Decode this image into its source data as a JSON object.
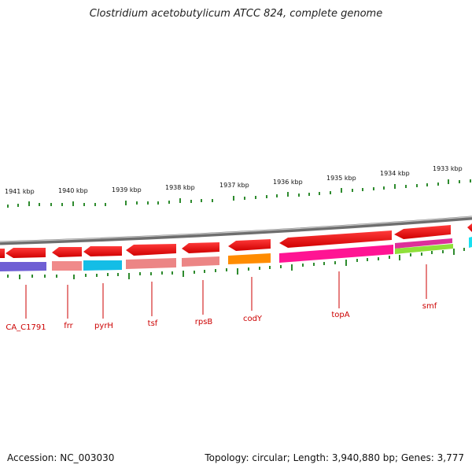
{
  "title": "Clostridium acetobutylicum ATCC 824, complete genome",
  "footer": {
    "accession": "Accession: NC_003030",
    "summary": "Topology: circular; Length: 3,940,880 bp; Genes: 3,777"
  },
  "ruler_labels": [
    "1941 kbp",
    "1940 kbp",
    "1939 kbp",
    "1938 kbp",
    "1937 kbp",
    "1936 kbp",
    "1935 kbp",
    "1934 kbp",
    "1933 kbp"
  ],
  "gene_labels": [
    "CA_C1791",
    "frr",
    "pyrH",
    "tsf",
    "rpsB",
    "codY",
    "topA",
    "smf"
  ],
  "colors": {
    "backbone": "#8a8a8a",
    "gene_arrow": "#ee0000",
    "tick": "#2e8b2e",
    "label": "#cc0000"
  }
}
